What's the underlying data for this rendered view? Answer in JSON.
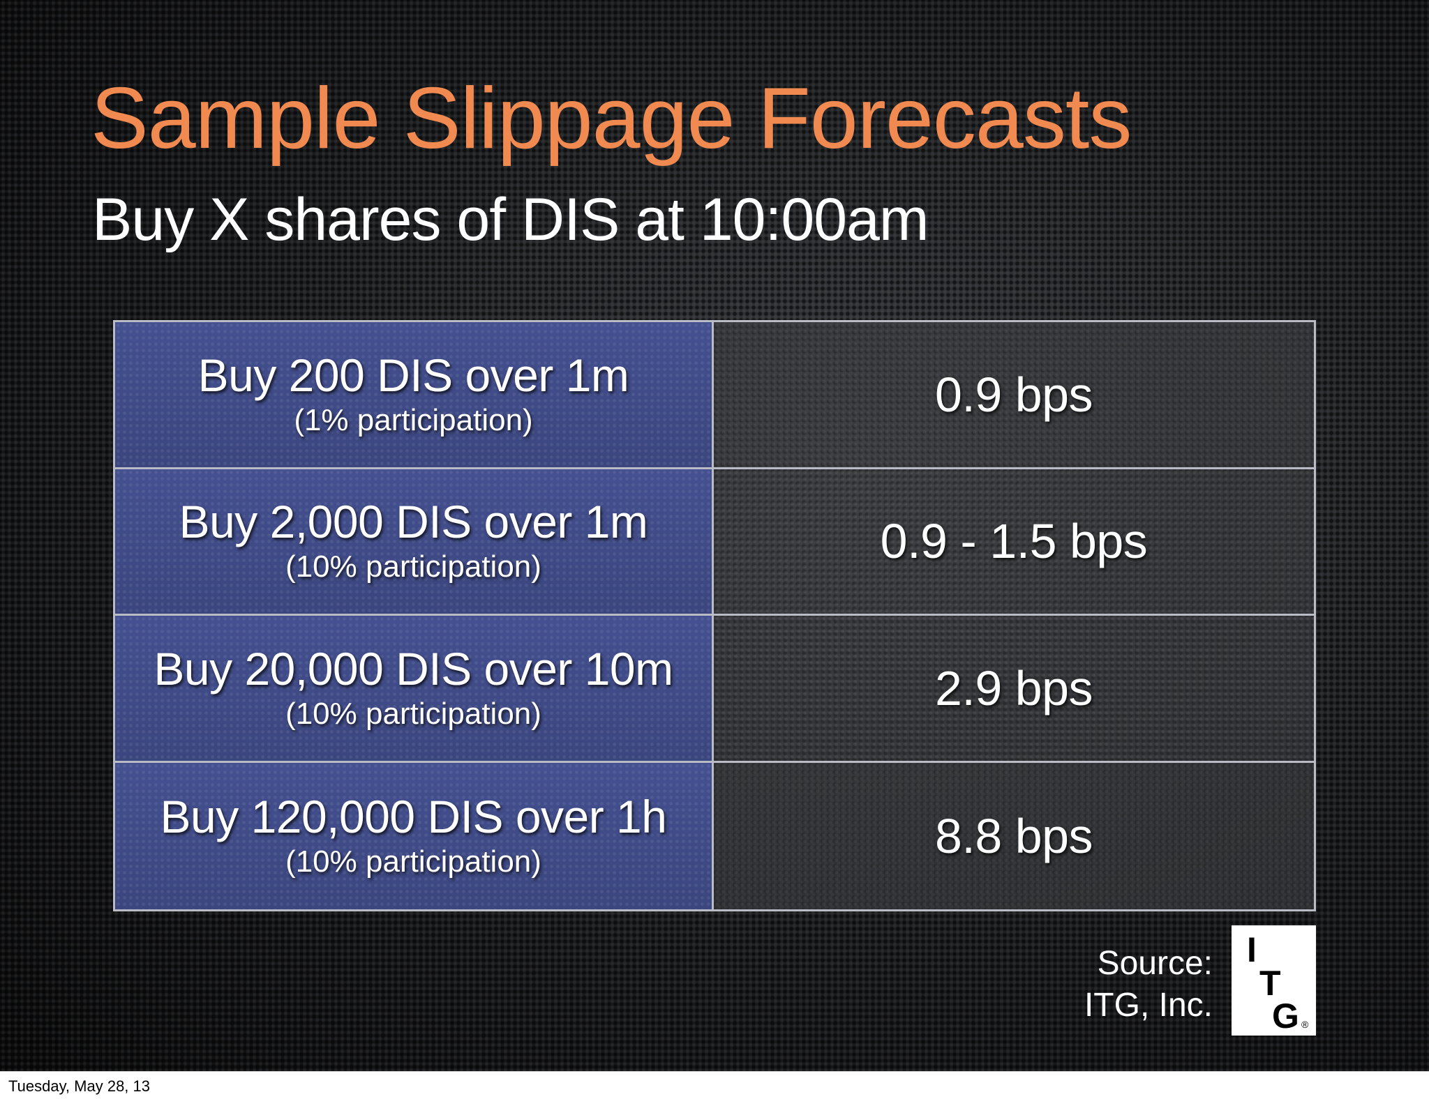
{
  "slide": {
    "title": "Sample Slippage Forecasts",
    "subtitle": "Buy X shares of DIS at 10:00am",
    "rows": [
      {
        "order": "Buy 200 DIS over 1m",
        "participation": "(1% participation)",
        "slippage": "0.9 bps"
      },
      {
        "order": "Buy 2,000 DIS over 1m",
        "participation": "(10% participation)",
        "slippage": "0.9 - 1.5 bps"
      },
      {
        "order": "Buy 20,000 DIS over 10m",
        "participation": "(10% participation)",
        "slippage": "2.9 bps"
      },
      {
        "order": "Buy 120,000 DIS over 1h",
        "participation": "(10% participation)",
        "slippage": "8.8 bps"
      }
    ],
    "source": {
      "line1": "Source:",
      "line2": "ITG, Inc."
    },
    "logo": {
      "letters": [
        "I",
        "T",
        "G"
      ],
      "registered": "®"
    }
  },
  "footer": {
    "date": "Tuesday, May 28, 13"
  },
  "colors": {
    "title": "#f08a50",
    "left_cell": "#3f4a86",
    "border": "#b9bcc4",
    "background": "#141516"
  }
}
